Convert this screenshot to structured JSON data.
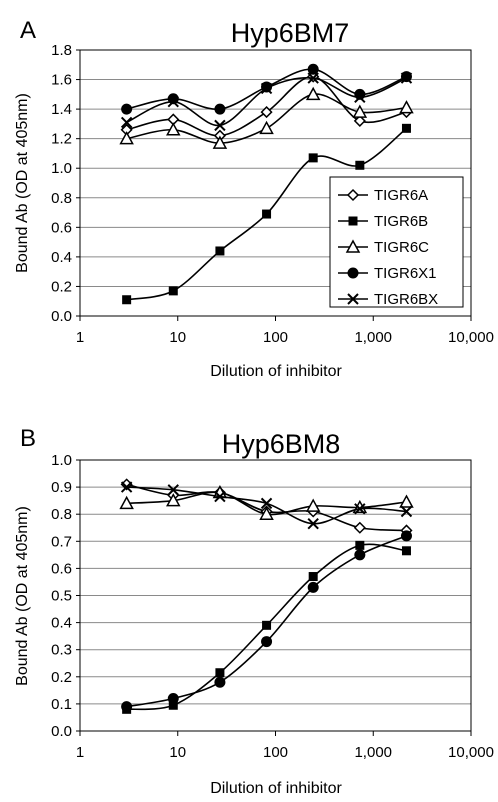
{
  "chart_data": [
    {
      "panel_label": "A",
      "type": "line",
      "title": "Hyp6BM7",
      "xlabel": "Dilution of inhibitor",
      "ylabel": "Bound Ab (OD at 405nm)",
      "x_scale": "log",
      "xlim": [
        1,
        10000
      ],
      "ylim": [
        0,
        1.8
      ],
      "x_tick_labels": [
        "1",
        "10",
        "100",
        "1,000",
        "10,000"
      ],
      "y_tick_labels": [
        "0.0",
        "0.2",
        "0.4",
        "0.6",
        "0.8",
        "1.0",
        "1.2",
        "1.4",
        "1.6",
        "1.8"
      ],
      "grid": "horizontal",
      "legend": "right",
      "x": [
        3,
        9,
        27,
        81,
        243,
        729,
        2187
      ],
      "series": [
        {
          "name": "TIGR6A",
          "marker": "diamond",
          "values": [
            1.26,
            1.33,
            1.22,
            1.38,
            1.62,
            1.32,
            1.38
          ]
        },
        {
          "name": "TIGR6B",
          "marker": "square",
          "values": [
            0.11,
            0.17,
            0.44,
            0.69,
            1.07,
            1.02,
            1.27
          ]
        },
        {
          "name": "TIGR6C",
          "marker": "triangle",
          "values": [
            1.2,
            1.26,
            1.17,
            1.27,
            1.5,
            1.38,
            1.41
          ]
        },
        {
          "name": "TIGR6X1",
          "marker": "circle",
          "values": [
            1.4,
            1.47,
            1.4,
            1.55,
            1.67,
            1.5,
            1.62
          ]
        },
        {
          "name": "TIGR6BX",
          "marker": "x",
          "values": [
            1.31,
            1.45,
            1.29,
            1.54,
            1.61,
            1.48,
            1.61
          ]
        }
      ]
    },
    {
      "panel_label": "B",
      "type": "line",
      "title": "Hyp6BM8",
      "xlabel": "Dilution of inhibitor",
      "ylabel": "Bound Ab (OD at 405nm)",
      "x_scale": "log",
      "xlim": [
        1,
        10000
      ],
      "ylim": [
        0,
        1.0
      ],
      "x_tick_labels": [
        "1",
        "10",
        "100",
        "1,000",
        "10,000"
      ],
      "y_tick_labels": [
        "0.0",
        "0.1",
        "0.2",
        "0.3",
        "0.4",
        "0.5",
        "0.6",
        "0.7",
        "0.8",
        "0.9",
        "1.0"
      ],
      "grid": "horizontal",
      "legend": "none",
      "x": [
        3,
        9,
        27,
        81,
        243,
        729,
        2187
      ],
      "series": [
        {
          "marker": "diamond",
          "values": [
            0.91,
            0.87,
            0.88,
            0.81,
            0.81,
            0.75,
            0.74
          ]
        },
        {
          "marker": "square",
          "values": [
            0.08,
            0.095,
            0.215,
            0.39,
            0.57,
            0.685,
            0.665
          ]
        },
        {
          "marker": "triangle",
          "values": [
            0.84,
            0.85,
            0.88,
            0.8,
            0.83,
            0.825,
            0.845
          ]
        },
        {
          "marker": "circle",
          "values": [
            0.09,
            0.12,
            0.18,
            0.33,
            0.53,
            0.65,
            0.72
          ]
        },
        {
          "marker": "x",
          "values": [
            0.9,
            0.89,
            0.865,
            0.84,
            0.765,
            0.82,
            0.81
          ]
        }
      ]
    }
  ]
}
